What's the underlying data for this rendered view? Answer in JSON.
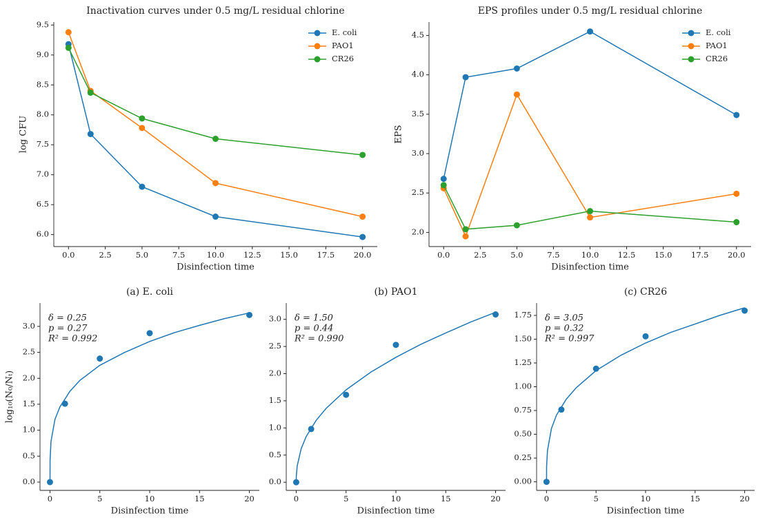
{
  "chart_data": [
    {
      "type": "line",
      "title": "Inactivation curves under 0.5 mg/L residual chlorine",
      "xlabel": "Disinfection time",
      "ylabel": "log CFU",
      "x": [
        0,
        1.5,
        5,
        10,
        20
      ],
      "series": [
        {
          "name": "E. coli",
          "color": "#1f77b4",
          "values": [
            9.18,
            7.68,
            6.8,
            6.3,
            5.96
          ]
        },
        {
          "name": "PAO1",
          "color": "#ff7f0e",
          "values": [
            9.38,
            8.4,
            7.78,
            6.86,
            6.3
          ]
        },
        {
          "name": "CR26",
          "color": "#2ca02c",
          "values": [
            9.12,
            8.37,
            7.94,
            7.6,
            7.33
          ]
        }
      ],
      "xlim": [
        -1,
        21
      ],
      "xticks": [
        {
          "value": 0,
          "label": "0.0"
        },
        2.5,
        {
          "value": 5,
          "label": "5.0"
        },
        7.5,
        {
          "value": 10,
          "label": "10.0"
        },
        12.5,
        {
          "value": 15,
          "label": "15.0"
        },
        17.5,
        {
          "value": 20,
          "label": "20.0"
        }
      ],
      "ylim": [
        5.8,
        9.55
      ],
      "yticks": [
        {
          "value": 6,
          "label": "6.0"
        },
        6.5,
        {
          "value": 7,
          "label": "7.0"
        },
        7.5,
        {
          "value": 8,
          "label": "8.0"
        },
        8.5,
        {
          "value": 9,
          "label": "9.0"
        },
        9.5
      ],
      "legend": "upper right"
    },
    {
      "type": "line",
      "title": "EPS profiles under 0.5 mg/L residual chlorine",
      "xlabel": "Disinfection time",
      "ylabel": "EPS",
      "x": [
        0,
        1.5,
        5,
        10,
        20
      ],
      "series": [
        {
          "name": "E. coli",
          "color": "#1f77b4",
          "values": [
            2.68,
            3.97,
            4.08,
            4.55,
            3.49
          ]
        },
        {
          "name": "PAO1",
          "color": "#ff7f0e",
          "values": [
            2.56,
            1.95,
            3.75,
            2.19,
            2.49
          ]
        },
        {
          "name": "CR26",
          "color": "#2ca02c",
          "values": [
            2.6,
            2.04,
            2.09,
            2.27,
            2.13
          ]
        }
      ],
      "xlim": [
        -1,
        21
      ],
      "xticks": [
        {
          "value": 0,
          "label": "0.0"
        },
        2.5,
        {
          "value": 5,
          "label": "5.0"
        },
        7.5,
        {
          "value": 10,
          "label": "10.0"
        },
        12.5,
        {
          "value": 15,
          "label": "15.0"
        },
        17.5,
        {
          "value": 20,
          "label": "20.0"
        }
      ],
      "ylim": [
        1.82,
        4.67
      ],
      "yticks": [
        {
          "value": 2,
          "label": "2.0"
        },
        2.5,
        {
          "value": 3,
          "label": "3.0"
        },
        3.5,
        {
          "value": 4,
          "label": "4.0"
        },
        4.5
      ],
      "legend": "upper right"
    },
    {
      "type": "scatter",
      "title": "(a) E. coli",
      "xlabel": "Disinfection time",
      "ylabel": "log₁₀(N₀/Nₜ)",
      "annotations": [
        "δ = 0.25",
        "p = 0.27",
        "R² = 0.992"
      ],
      "x": [
        0,
        1.5,
        5,
        10,
        20
      ],
      "series": [
        {
          "color": "#1f77b4",
          "values": [
            0,
            1.51,
            2.38,
            2.87,
            3.22
          ]
        }
      ],
      "curve": {
        "color": "#1f77b4",
        "x": [
          0,
          0.01,
          0.1,
          0.5,
          1,
          2,
          3,
          5,
          7.5,
          10,
          12.5,
          15,
          17.5,
          20
        ],
        "values": [
          0,
          0.42,
          0.78,
          1.21,
          1.45,
          1.75,
          1.96,
          2.25,
          2.5,
          2.71,
          2.88,
          3.02,
          3.15,
          3.26
        ]
      },
      "xlim": [
        -1,
        21
      ],
      "xticks": [
        0,
        5,
        10,
        15,
        20
      ],
      "ylim": [
        -0.16,
        3.45
      ],
      "yticks": [
        {
          "value": 0,
          "label": "0.0"
        },
        0.5,
        {
          "value": 1,
          "label": "1.0"
        },
        1.5,
        {
          "value": 2,
          "label": "2.0"
        },
        2.5,
        {
          "value": 3,
          "label": "3.0"
        }
      ]
    },
    {
      "type": "scatter",
      "title": "(b) PAO1",
      "xlabel": "Disinfection time",
      "annotations": [
        "δ = 1.50",
        "p = 0.44",
        "R² = 0.990"
      ],
      "x": [
        0,
        1.5,
        5,
        10,
        20
      ],
      "series": [
        {
          "color": "#1f77b4",
          "values": [
            0,
            0.98,
            1.61,
            2.53,
            3.09
          ]
        }
      ],
      "curve": {
        "color": "#1f77b4",
        "x": [
          0,
          0.01,
          0.1,
          0.5,
          1,
          2,
          3,
          5,
          7.5,
          10,
          12.5,
          15,
          17.5,
          20
        ],
        "values": [
          0,
          0.11,
          0.3,
          0.62,
          0.84,
          1.14,
          1.36,
          1.7,
          2.03,
          2.3,
          2.54,
          2.75,
          2.95,
          3.13
        ]
      },
      "xlim": [
        -1,
        21
      ],
      "xticks": [
        0,
        5,
        10,
        15,
        20
      ],
      "ylim": [
        -0.15,
        3.3
      ],
      "yticks": [
        {
          "value": 0,
          "label": "0.0"
        },
        0.5,
        {
          "value": 1,
          "label": "1.0"
        },
        1.5,
        {
          "value": 2,
          "label": "2.0"
        },
        2.5,
        {
          "value": 3,
          "label": "3.0"
        }
      ]
    },
    {
      "type": "scatter",
      "title": "(c) CR26",
      "xlabel": "Disinfection time",
      "annotations": [
        "δ = 3.05",
        "p = 0.32",
        "R² = 0.997"
      ],
      "x": [
        0,
        1.5,
        5,
        10,
        20
      ],
      "series": [
        {
          "color": "#1f77b4",
          "values": [
            0,
            0.76,
            1.19,
            1.53,
            1.8
          ]
        }
      ],
      "curve": {
        "color": "#1f77b4",
        "x": [
          0,
          0.01,
          0.1,
          0.5,
          1,
          2,
          3,
          5,
          7.5,
          10,
          12.5,
          15,
          17.5,
          20
        ],
        "values": [
          0,
          0.16,
          0.33,
          0.56,
          0.7,
          0.87,
          0.99,
          1.17,
          1.33,
          1.46,
          1.57,
          1.66,
          1.75,
          1.83
        ]
      },
      "xlim": [
        -1,
        21
      ],
      "xticks": [
        0,
        5,
        10,
        15,
        20
      ],
      "ylim": [
        -0.09,
        1.88
      ],
      "yticks": [
        {
          "value": 0,
          "label": "0.00"
        },
        0.25,
        {
          "value": 0.5,
          "label": "0.50"
        },
        0.75,
        {
          "value": 1,
          "label": "1.00"
        },
        1.25,
        {
          "value": 1.5,
          "label": "1.50"
        },
        1.75
      ]
    }
  ]
}
